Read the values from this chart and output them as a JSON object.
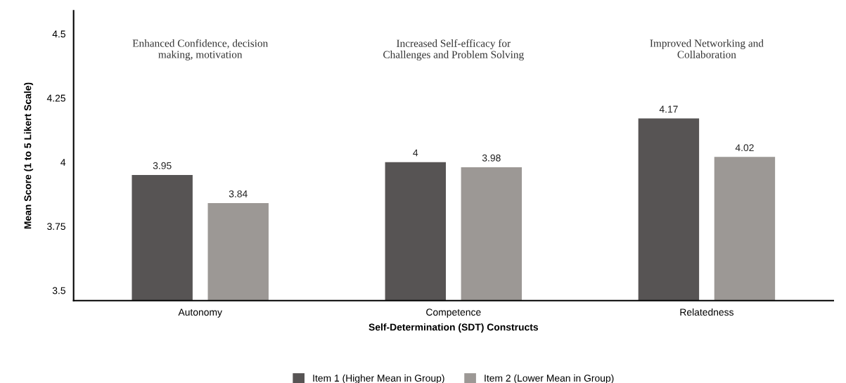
{
  "chart_data": {
    "type": "bar",
    "xlabel": "Self-Determination (SDT) Constructs",
    "ylabel": "Mean Score (1 to 5 Likert Scale)",
    "categories": [
      "Autonomy",
      "Competence",
      "Relatedness"
    ],
    "series": [
      {
        "name": "Item 1 (Higher Mean in Group)",
        "color": "#575454",
        "values": [
          3.95,
          4,
          4.17
        ]
      },
      {
        "name": "Item 2 (Lower Mean in Group)",
        "color": "#9c9895",
        "values": [
          3.84,
          3.98,
          4.02
        ]
      }
    ],
    "ylim": [
      3.46,
      4.59
    ],
    "yticks": [
      3.5,
      3.75,
      4,
      4.25,
      4.5
    ],
    "data_labels": true,
    "grid": false,
    "legend": "bottom",
    "annotations": [
      "Enhanced Confidence, decision\nmaking, motivation",
      "Increased Self-efficacy for\nChallenges and Problem Solving",
      "Improved Networking and\nCollaboration"
    ]
  }
}
